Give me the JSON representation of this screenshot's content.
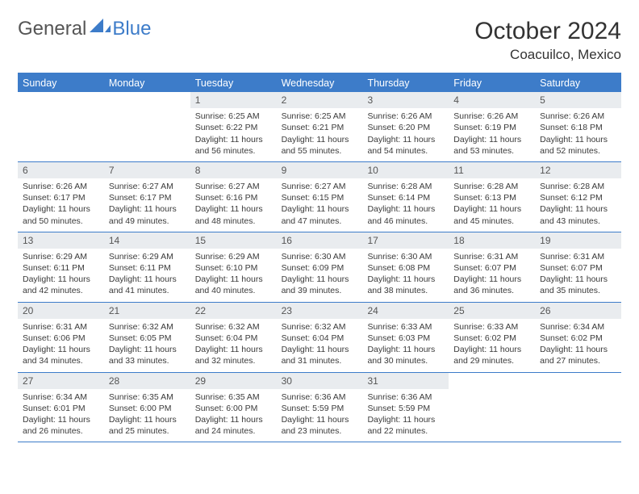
{
  "logo": {
    "text1": "General",
    "text2": "Blue"
  },
  "title": "October 2024",
  "location": "Coacuilco, Mexico",
  "colors": {
    "accent": "#3d7cc9",
    "daynum_bg": "#e9ecef",
    "text": "#333333"
  },
  "day_headers": [
    "Sunday",
    "Monday",
    "Tuesday",
    "Wednesday",
    "Thursday",
    "Friday",
    "Saturday"
  ],
  "weeks": [
    [
      {
        "empty": true
      },
      {
        "empty": true
      },
      {
        "num": "1",
        "sunrise": "Sunrise: 6:25 AM",
        "sunset": "Sunset: 6:22 PM",
        "daylight": "Daylight: 11 hours and 56 minutes."
      },
      {
        "num": "2",
        "sunrise": "Sunrise: 6:25 AM",
        "sunset": "Sunset: 6:21 PM",
        "daylight": "Daylight: 11 hours and 55 minutes."
      },
      {
        "num": "3",
        "sunrise": "Sunrise: 6:26 AM",
        "sunset": "Sunset: 6:20 PM",
        "daylight": "Daylight: 11 hours and 54 minutes."
      },
      {
        "num": "4",
        "sunrise": "Sunrise: 6:26 AM",
        "sunset": "Sunset: 6:19 PM",
        "daylight": "Daylight: 11 hours and 53 minutes."
      },
      {
        "num": "5",
        "sunrise": "Sunrise: 6:26 AM",
        "sunset": "Sunset: 6:18 PM",
        "daylight": "Daylight: 11 hours and 52 minutes."
      }
    ],
    [
      {
        "num": "6",
        "sunrise": "Sunrise: 6:26 AM",
        "sunset": "Sunset: 6:17 PM",
        "daylight": "Daylight: 11 hours and 50 minutes."
      },
      {
        "num": "7",
        "sunrise": "Sunrise: 6:27 AM",
        "sunset": "Sunset: 6:17 PM",
        "daylight": "Daylight: 11 hours and 49 minutes."
      },
      {
        "num": "8",
        "sunrise": "Sunrise: 6:27 AM",
        "sunset": "Sunset: 6:16 PM",
        "daylight": "Daylight: 11 hours and 48 minutes."
      },
      {
        "num": "9",
        "sunrise": "Sunrise: 6:27 AM",
        "sunset": "Sunset: 6:15 PM",
        "daylight": "Daylight: 11 hours and 47 minutes."
      },
      {
        "num": "10",
        "sunrise": "Sunrise: 6:28 AM",
        "sunset": "Sunset: 6:14 PM",
        "daylight": "Daylight: 11 hours and 46 minutes."
      },
      {
        "num": "11",
        "sunrise": "Sunrise: 6:28 AM",
        "sunset": "Sunset: 6:13 PM",
        "daylight": "Daylight: 11 hours and 45 minutes."
      },
      {
        "num": "12",
        "sunrise": "Sunrise: 6:28 AM",
        "sunset": "Sunset: 6:12 PM",
        "daylight": "Daylight: 11 hours and 43 minutes."
      }
    ],
    [
      {
        "num": "13",
        "sunrise": "Sunrise: 6:29 AM",
        "sunset": "Sunset: 6:11 PM",
        "daylight": "Daylight: 11 hours and 42 minutes."
      },
      {
        "num": "14",
        "sunrise": "Sunrise: 6:29 AM",
        "sunset": "Sunset: 6:11 PM",
        "daylight": "Daylight: 11 hours and 41 minutes."
      },
      {
        "num": "15",
        "sunrise": "Sunrise: 6:29 AM",
        "sunset": "Sunset: 6:10 PM",
        "daylight": "Daylight: 11 hours and 40 minutes."
      },
      {
        "num": "16",
        "sunrise": "Sunrise: 6:30 AM",
        "sunset": "Sunset: 6:09 PM",
        "daylight": "Daylight: 11 hours and 39 minutes."
      },
      {
        "num": "17",
        "sunrise": "Sunrise: 6:30 AM",
        "sunset": "Sunset: 6:08 PM",
        "daylight": "Daylight: 11 hours and 38 minutes."
      },
      {
        "num": "18",
        "sunrise": "Sunrise: 6:31 AM",
        "sunset": "Sunset: 6:07 PM",
        "daylight": "Daylight: 11 hours and 36 minutes."
      },
      {
        "num": "19",
        "sunrise": "Sunrise: 6:31 AM",
        "sunset": "Sunset: 6:07 PM",
        "daylight": "Daylight: 11 hours and 35 minutes."
      }
    ],
    [
      {
        "num": "20",
        "sunrise": "Sunrise: 6:31 AM",
        "sunset": "Sunset: 6:06 PM",
        "daylight": "Daylight: 11 hours and 34 minutes."
      },
      {
        "num": "21",
        "sunrise": "Sunrise: 6:32 AM",
        "sunset": "Sunset: 6:05 PM",
        "daylight": "Daylight: 11 hours and 33 minutes."
      },
      {
        "num": "22",
        "sunrise": "Sunrise: 6:32 AM",
        "sunset": "Sunset: 6:04 PM",
        "daylight": "Daylight: 11 hours and 32 minutes."
      },
      {
        "num": "23",
        "sunrise": "Sunrise: 6:32 AM",
        "sunset": "Sunset: 6:04 PM",
        "daylight": "Daylight: 11 hours and 31 minutes."
      },
      {
        "num": "24",
        "sunrise": "Sunrise: 6:33 AM",
        "sunset": "Sunset: 6:03 PM",
        "daylight": "Daylight: 11 hours and 30 minutes."
      },
      {
        "num": "25",
        "sunrise": "Sunrise: 6:33 AM",
        "sunset": "Sunset: 6:02 PM",
        "daylight": "Daylight: 11 hours and 29 minutes."
      },
      {
        "num": "26",
        "sunrise": "Sunrise: 6:34 AM",
        "sunset": "Sunset: 6:02 PM",
        "daylight": "Daylight: 11 hours and 27 minutes."
      }
    ],
    [
      {
        "num": "27",
        "sunrise": "Sunrise: 6:34 AM",
        "sunset": "Sunset: 6:01 PM",
        "daylight": "Daylight: 11 hours and 26 minutes."
      },
      {
        "num": "28",
        "sunrise": "Sunrise: 6:35 AM",
        "sunset": "Sunset: 6:00 PM",
        "daylight": "Daylight: 11 hours and 25 minutes."
      },
      {
        "num": "29",
        "sunrise": "Sunrise: 6:35 AM",
        "sunset": "Sunset: 6:00 PM",
        "daylight": "Daylight: 11 hours and 24 minutes."
      },
      {
        "num": "30",
        "sunrise": "Sunrise: 6:36 AM",
        "sunset": "Sunset: 5:59 PM",
        "daylight": "Daylight: 11 hours and 23 minutes."
      },
      {
        "num": "31",
        "sunrise": "Sunrise: 6:36 AM",
        "sunset": "Sunset: 5:59 PM",
        "daylight": "Daylight: 11 hours and 22 minutes."
      },
      {
        "empty": true
      },
      {
        "empty": true
      }
    ]
  ]
}
